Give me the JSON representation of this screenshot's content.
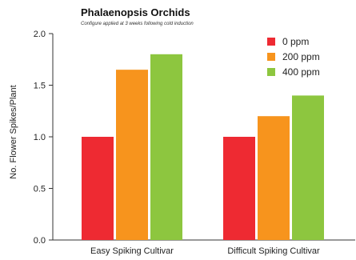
{
  "chart_data": {
    "type": "bar",
    "title": "Phalaenopsis Orchids",
    "subtitle": "Configure applied at 3 weeks following cold induction",
    "ylabel": "No. Flower Spikes/Plant",
    "xlabel": "",
    "categories": [
      "Easy Spiking Cultivar",
      "Difficult Spiking Cultivar"
    ],
    "series": [
      {
        "name": "0 ppm",
        "color": "#ee2a32",
        "values": [
          1.0,
          1.0
        ]
      },
      {
        "name": "200 ppm",
        "color": "#f7941d",
        "values": [
          1.65,
          1.2
        ]
      },
      {
        "name": "400 ppm",
        "color": "#8dc63f",
        "values": [
          1.8,
          1.4
        ]
      }
    ],
    "ylim": [
      0,
      2.0
    ],
    "yticks": [
      "0.0",
      "0.5",
      "1.0",
      "1.5",
      "2.0"
    ],
    "grid": false,
    "legend_position": "top-right"
  }
}
